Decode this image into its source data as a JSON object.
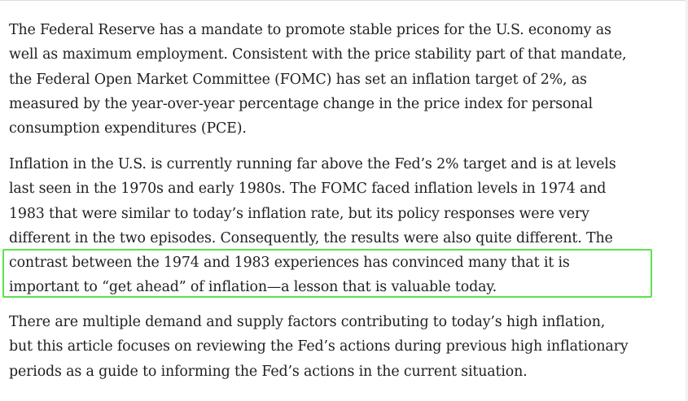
{
  "article": {
    "paragraph_1": "The Federal Reserve has a mandate to promote stable prices for the U.S. economy as\nwell as maximum employment. Consistent with the price stability part of that mandate,\nthe Federal Open Market Committee (FOMC) has set an inflation target of 2%, as\nmeasured by the year-over-year percentage change in the price index for personal\nconsumption expenditures (PCE).",
    "paragraph_2": "Inflation in the U.S. is currently running far above the Fed’s 2% target and is at levels\nlast seen in the 1970s and early 1980s. The FOMC faced inflation levels in 1974 and\n1983 that were similar to today’s inflation rate, but its policy responses were very\ndifferent in the two episodes. Consequently, the results were also quite different. The\ncontrast between the 1974 and 1983 experiences has convinced many that it is\nimportant to “get ahead” of inflation—a lesson that is valuable today.",
    "paragraph_3": "There are multiple demand and supply factors contributing to today’s high inflation,\nbut this article focuses on reviewing the Fed’s actions during previous high inflationary\nperiods as a guide to informing the Fed’s actions in the current situation."
  },
  "colors": {
    "text": "#1f1f1f",
    "highlight_border": "#5fe04f",
    "background": "#ffffff"
  }
}
